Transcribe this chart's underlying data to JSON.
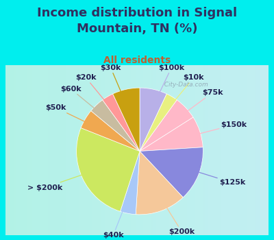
{
  "title": "Income distribution in Signal\nMountain, TN (%)",
  "subtitle": "All residents",
  "labels": [
    "$100k",
    "$10k",
    "$75k",
    "$150k",
    "$125k",
    "$200k",
    "$40k",
    "> $200k",
    "$50k",
    "$60k",
    "$20k",
    "$30k"
  ],
  "values": [
    7,
    3,
    6,
    8,
    14,
    13,
    4,
    26,
    5,
    4,
    3,
    7
  ],
  "colors": [
    "#b8b0e8",
    "#e8f080",
    "#ffb8c8",
    "#ffb8c8",
    "#8888dd",
    "#f5c89a",
    "#a8c8f8",
    "#cce860",
    "#f0a850",
    "#c8bca0",
    "#ff9898",
    "#c8a010"
  ],
  "background_color": "#00eeee",
  "chart_bg": "#e0f5e8",
  "title_color": "#303060",
  "subtitle_color": "#c06030",
  "watermark": "  City-Data.com",
  "title_fontsize": 13,
  "subtitle_fontsize": 10,
  "label_fontsize": 8,
  "label_color": "#202050"
}
